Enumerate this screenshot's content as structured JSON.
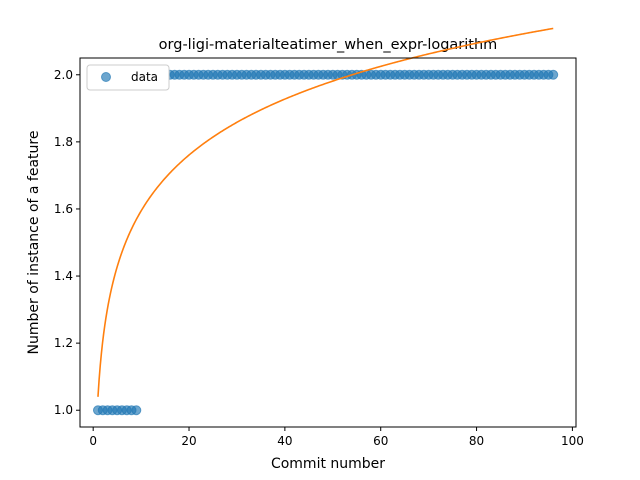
{
  "chart_data": {
    "type": "scatter",
    "title": "org-ligi-materialteatimer_when_expr-logarithm",
    "xlabel": "Commit number",
    "ylabel": "Number of instance of a feature",
    "xlim": [
      -2.75,
      100.75
    ],
    "ylim": [
      0.95,
      2.05
    ],
    "xticks": [
      0,
      20,
      40,
      60,
      80,
      100
    ],
    "yticks": [
      1.0,
      1.2,
      1.4,
      1.6,
      1.8,
      2.0
    ],
    "xtick_labels": [
      "0",
      "20",
      "40",
      "60",
      "80",
      "100"
    ],
    "ytick_labels": [
      "1.0",
      "1.2",
      "1.4",
      "1.6",
      "1.8",
      "2.0"
    ],
    "grid": false,
    "legend_position": "top-left",
    "series": [
      {
        "name": "data",
        "kind": "scatter",
        "color": "#1f77b4",
        "alpha": 0.65,
        "segments": [
          {
            "x_from": 1,
            "x_to": 9,
            "y": 1.0
          },
          {
            "x_from": 10,
            "x_to": 96,
            "y": 2.0
          }
        ]
      },
      {
        "kind": "line",
        "color": "#ff7f0e",
        "fit": {
          "form": "a + b*ln(x)",
          "a": 1.04,
          "b": 0.2406,
          "x_from": 1,
          "x_to": 96
        }
      }
    ]
  }
}
